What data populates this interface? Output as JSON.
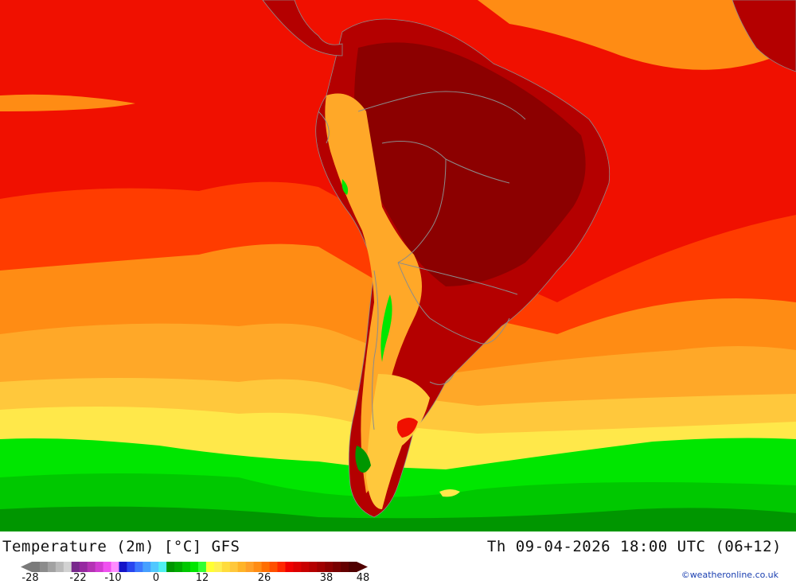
{
  "header": {
    "title_left": "Temperature (2m) [°C] GFS",
    "title_right": "Th 09-04-2026 18:00 UTC (06+12)"
  },
  "legend": {
    "ticks": [
      "-28",
      "-22",
      "-10",
      "0",
      "12",
      "26",
      "38",
      "48"
    ],
    "colors": [
      "#7a7a7a",
      "#8c8c8c",
      "#a2a2a2",
      "#bababa",
      "#d2d2d2",
      "#78288c",
      "#9628a0",
      "#b432b4",
      "#d23cd2",
      "#f050f0",
      "#ff8cff",
      "#1414c8",
      "#2846f0",
      "#3c78ff",
      "#46a0ff",
      "#50c8ff",
      "#50f0f0",
      "#009600",
      "#00aa00",
      "#00c800",
      "#00e600",
      "#32ff32",
      "#ffff32",
      "#fff050",
      "#ffdc3c",
      "#ffc83c",
      "#ffb428",
      "#ffa028",
      "#ff8c14",
      "#ff6e00",
      "#ff5000",
      "#ff2800",
      "#f00000",
      "#dc0000",
      "#c80000",
      "#b40000",
      "#a00000",
      "#8c0000",
      "#780000",
      "#640000",
      "#500000"
    ]
  },
  "credit": "©weatheronline.co.uk",
  "map": {
    "palette": {
      "deep_red": "#8c0000",
      "dark_red": "#b40000",
      "red": "#f01000",
      "red_orange": "#ff3c00",
      "orange": "#ff8c14",
      "light_orange": "#ffa828",
      "gold": "#ffc83c",
      "yellow": "#ffe84a",
      "bright_yellow": "#ffff32",
      "green": "#00e600",
      "mid_green": "#00c800",
      "dark_green": "#009600",
      "border": "#8c8c8c"
    }
  }
}
